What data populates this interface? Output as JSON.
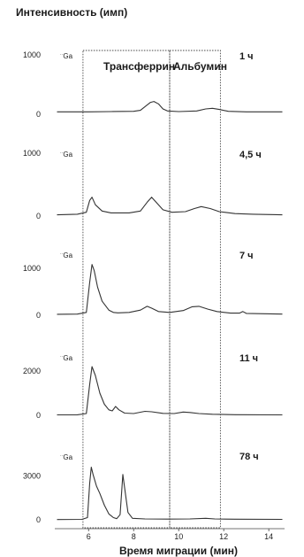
{
  "chart_data": {
    "type": "line",
    "ylabel": "Интенсивность (имп)",
    "xlabel": "Время миграции (мин)",
    "xlim": [
      4.5,
      14.7
    ],
    "x_ticks": [
      "6",
      "8",
      "10",
      "12",
      "14"
    ],
    "x_tick_values": [
      6,
      8,
      10,
      12,
      14
    ],
    "line_color": "#333333",
    "box_color": "#444444",
    "annotations": {
      "transferrin": "Трансферрин",
      "albumin": "Альбумин"
    },
    "boxes": [
      {
        "name": "transferrin-window",
        "x": [
          5.75,
          9.6
        ]
      },
      {
        "name": "albumin-window",
        "x": [
          9.6,
          11.85
        ]
      }
    ],
    "panels": [
      {
        "label": "1 ч",
        "isotope": "Ga",
        "ymax_tick": "1000",
        "ymin_tick": "0",
        "ylim": [
          0,
          1000
        ],
        "points": [
          [
            4.6,
            40
          ],
          [
            6.0,
            40
          ],
          [
            7.0,
            45
          ],
          [
            8.0,
            50
          ],
          [
            8.3,
            65
          ],
          [
            8.55,
            140
          ],
          [
            8.75,
            200
          ],
          [
            8.9,
            215
          ],
          [
            9.1,
            175
          ],
          [
            9.3,
            90
          ],
          [
            9.5,
            55
          ],
          [
            10.0,
            45
          ],
          [
            10.8,
            55
          ],
          [
            11.2,
            90
          ],
          [
            11.5,
            100
          ],
          [
            11.8,
            80
          ],
          [
            12.2,
            50
          ],
          [
            13.0,
            40
          ],
          [
            14.6,
            40
          ]
        ]
      },
      {
        "label": "4,5 ч",
        "isotope": "Ga",
        "ymax_tick": "1000",
        "ymin_tick": "0",
        "ylim": [
          0,
          1000
        ],
        "points": [
          [
            4.6,
            20
          ],
          [
            5.5,
            30
          ],
          [
            5.9,
            60
          ],
          [
            6.05,
            250
          ],
          [
            6.15,
            300
          ],
          [
            6.3,
            180
          ],
          [
            6.6,
            80
          ],
          [
            7.0,
            50
          ],
          [
            7.8,
            50
          ],
          [
            8.3,
            80
          ],
          [
            8.6,
            220
          ],
          [
            8.8,
            300
          ],
          [
            9.0,
            220
          ],
          [
            9.3,
            100
          ],
          [
            9.7,
            60
          ],
          [
            10.3,
            70
          ],
          [
            10.7,
            120
          ],
          [
            11.0,
            150
          ],
          [
            11.4,
            120
          ],
          [
            11.8,
            70
          ],
          [
            12.5,
            40
          ],
          [
            13.3,
            30
          ],
          [
            14.6,
            20
          ]
        ]
      },
      {
        "label": "7 ч",
        "isotope": "Ga",
        "ymax_tick": "1000",
        "ymin_tick": "0",
        "ylim": [
          0,
          1300
        ],
        "points": [
          [
            4.6,
            20
          ],
          [
            5.5,
            25
          ],
          [
            5.9,
            60
          ],
          [
            6.05,
            700
          ],
          [
            6.15,
            1080
          ],
          [
            6.25,
            950
          ],
          [
            6.4,
            600
          ],
          [
            6.6,
            300
          ],
          [
            6.9,
            110
          ],
          [
            7.1,
            60
          ],
          [
            7.3,
            50
          ],
          [
            7.8,
            60
          ],
          [
            8.3,
            110
          ],
          [
            8.6,
            190
          ],
          [
            8.8,
            150
          ],
          [
            9.1,
            80
          ],
          [
            9.6,
            60
          ],
          [
            10.2,
            100
          ],
          [
            10.6,
            180
          ],
          [
            10.9,
            190
          ],
          [
            11.3,
            130
          ],
          [
            11.7,
            80
          ],
          [
            12.3,
            45
          ],
          [
            12.7,
            45
          ],
          [
            12.85,
            80
          ],
          [
            13.0,
            40
          ],
          [
            14.6,
            25
          ]
        ]
      },
      {
        "label": "11 ч",
        "isotope": "Ga",
        "ymax_tick": "2000",
        "ymin_tick": "0",
        "ylim": [
          0,
          2600
        ],
        "points": [
          [
            4.6,
            20
          ],
          [
            5.5,
            25
          ],
          [
            5.9,
            80
          ],
          [
            6.05,
            1400
          ],
          [
            6.15,
            2200
          ],
          [
            6.3,
            1800
          ],
          [
            6.5,
            1000
          ],
          [
            6.7,
            500
          ],
          [
            6.9,
            250
          ],
          [
            7.05,
            200
          ],
          [
            7.2,
            400
          ],
          [
            7.35,
            250
          ],
          [
            7.6,
            100
          ],
          [
            8.0,
            80
          ],
          [
            8.5,
            180
          ],
          [
            8.8,
            160
          ],
          [
            9.3,
            90
          ],
          [
            9.8,
            80
          ],
          [
            10.2,
            150
          ],
          [
            10.5,
            130
          ],
          [
            10.9,
            80
          ],
          [
            11.5,
            50
          ],
          [
            12.5,
            30
          ],
          [
            14.6,
            20
          ]
        ]
      },
      {
        "label": "78 ч",
        "isotope": "Ga",
        "ymax_tick": "3000",
        "ymin_tick": "0",
        "ylim": [
          0,
          4300
        ],
        "points": [
          [
            4.6,
            20
          ],
          [
            5.7,
            30
          ],
          [
            5.95,
            150
          ],
          [
            6.05,
            2500
          ],
          [
            6.12,
            3600
          ],
          [
            6.2,
            3100
          ],
          [
            6.35,
            2300
          ],
          [
            6.5,
            1800
          ],
          [
            6.7,
            1000
          ],
          [
            6.9,
            400
          ],
          [
            7.1,
            150
          ],
          [
            7.25,
            80
          ],
          [
            7.4,
            350
          ],
          [
            7.52,
            3100
          ],
          [
            7.6,
            2200
          ],
          [
            7.75,
            500
          ],
          [
            7.95,
            100
          ],
          [
            8.5,
            60
          ],
          [
            9.5,
            50
          ],
          [
            10.5,
            60
          ],
          [
            11.2,
            100
          ],
          [
            11.6,
            60
          ],
          [
            12.5,
            40
          ],
          [
            14.6,
            30
          ]
        ]
      }
    ]
  }
}
